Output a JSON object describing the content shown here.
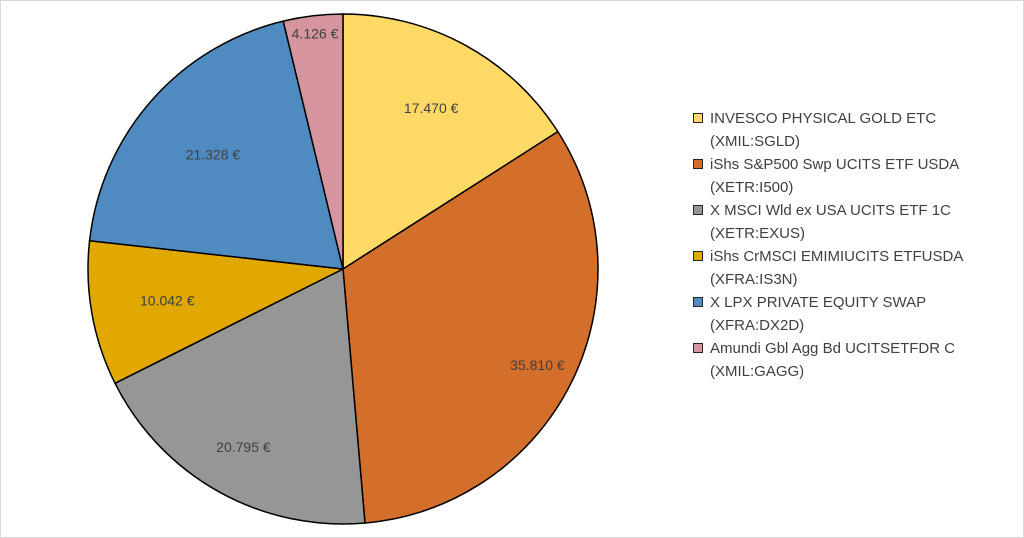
{
  "chart_data": {
    "type": "pie",
    "start_angle_deg": 0,
    "direction": "clockwise",
    "slices": [
      {
        "label": "INVESCO PHYSICAL GOLD ETC",
        "ticker": "(XMIL:SGLD)",
        "value": 17470,
        "display": "17.470 €",
        "color": "#ffd966"
      },
      {
        "label": "iShs S&P500 Swp UCITS ETF USDA",
        "ticker": "(XETR:I500)",
        "value": 35810,
        "display": "35.810 €",
        "color": "#d36e2b"
      },
      {
        "label": "X MSCI Wld ex USA UCITS ETF 1C",
        "ticker": "(XETR:EXUS)",
        "value": 20795,
        "display": "20.795 €",
        "color": "#969696"
      },
      {
        "label": "iShs CrMSCI EMIMIUCITS ETFUSDA",
        "ticker": "(XFRA:IS3N)",
        "value": 10042,
        "display": "10.042 €",
        "color": "#e0a800"
      },
      {
        "label": "X LPX PRIVATE EQUITY SWAP",
        "ticker": "(XFRA:DX2D)",
        "value": 21328,
        "display": "21.328 €",
        "color": "#4f8bc0"
      },
      {
        "label": "Amundi Gbl Agg Bd UCITSETFDR C",
        "ticker": "(XMIL:GAGG)",
        "value": 4126,
        "display": "4.126 €",
        "color": "#d4959e"
      }
    ],
    "legend_position": "right"
  }
}
